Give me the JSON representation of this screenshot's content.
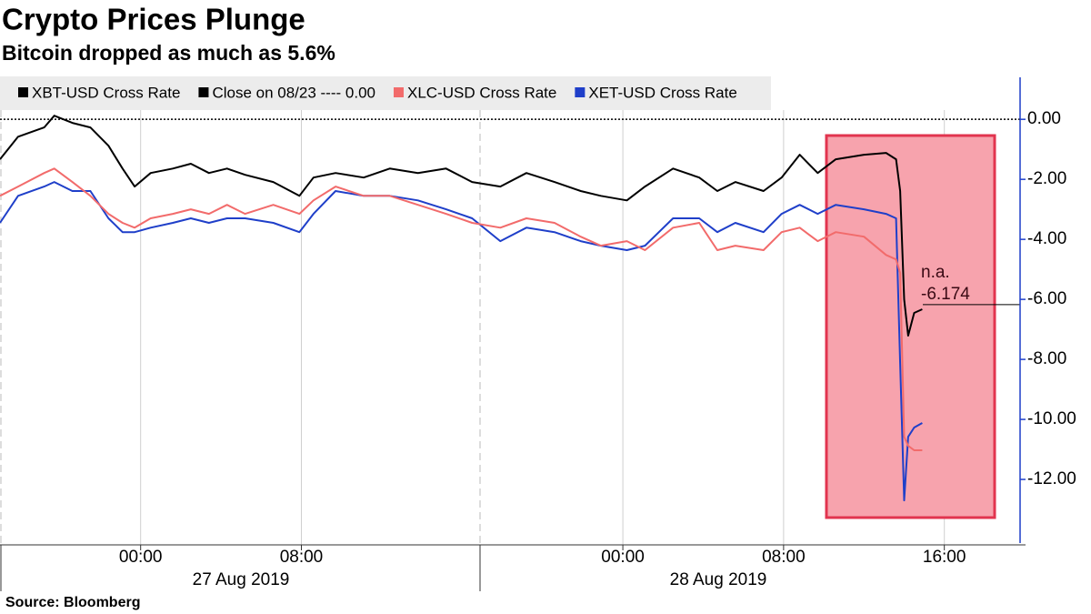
{
  "chart_data": {
    "type": "line",
    "title": "Crypto Prices Plunge",
    "subtitle": "Bitcoin dropped as much as 5.6%",
    "source": "Source: Bloomberg",
    "x": [
      -7.0,
      -6.1,
      -4.8,
      -4.3,
      -3.4,
      -2.5,
      -1.6,
      -0.9,
      -0.3,
      0.5,
      1.6,
      2.5,
      3.4,
      4.3,
      5.2,
      6.6,
      7.9,
      8.6,
      9.7,
      11.1,
      12.4,
      13.8,
      15.2,
      16.5,
      17.9,
      19.2,
      20.6,
      21.9,
      22.9,
      24.2,
      25.1,
      26.5,
      27.8,
      28.7,
      29.6,
      31.0,
      31.9,
      32.8,
      33.7,
      34.6,
      36.0,
      37.1,
      37.6,
      37.8,
      38.0,
      38.2,
      38.5,
      38.9
    ],
    "xlim": [
      -7,
      43.68
    ],
    "xticks": [
      {
        "value": 0,
        "label": "00:00"
      },
      {
        "value": 8,
        "label": "08:00"
      },
      {
        "value": 24,
        "label": "00:00"
      },
      {
        "value": 32,
        "label": "08:00"
      },
      {
        "value": 40,
        "label": "16:00"
      }
    ],
    "date_labels": [
      "27 Aug 2019",
      "28 Aug 2019"
    ],
    "ylim": [
      -14.06,
      1.4
    ],
    "yticks": [
      {
        "value": 0,
        "label": "0.00"
      },
      {
        "value": -2,
        "label": "-2.00"
      },
      {
        "value": -4,
        "label": "-4.00"
      },
      {
        "value": -6,
        "label": "-6.00"
      },
      {
        "value": -8,
        "label": "-8.00"
      },
      {
        "value": -10,
        "label": "-10.00"
      },
      {
        "value": -12,
        "label": "-12.00"
      }
    ],
    "reference": {
      "name": "Close on 08/23 ---- 0.00",
      "value": 0,
      "color": "#000000"
    },
    "series": [
      {
        "name": "XBT-USD Cross Rate",
        "color": "#000000",
        "values": [
          -1.33,
          -0.58,
          -0.27,
          0.12,
          -0.12,
          -0.27,
          -0.88,
          -1.64,
          -2.24,
          -1.79,
          -1.64,
          -1.48,
          -1.79,
          -1.64,
          -1.85,
          -2.09,
          -2.55,
          -1.94,
          -1.79,
          -1.94,
          -1.64,
          -1.79,
          -1.64,
          -2.09,
          -2.24,
          -1.79,
          -2.09,
          -2.39,
          -2.55,
          -2.7,
          -2.24,
          -1.64,
          -1.94,
          -2.39,
          -2.09,
          -2.39,
          -1.94,
          -1.18,
          -1.79,
          -1.33,
          -1.18,
          -1.12,
          -1.33,
          -2.39,
          -6.0,
          -7.21,
          -6.45,
          -6.33
        ]
      },
      {
        "name": "XLC-USD Cross Rate",
        "color": "#f26b6b",
        "values": [
          -2.55,
          -2.24,
          -1.79,
          -1.64,
          -2.09,
          -2.55,
          -3.15,
          -3.45,
          -3.61,
          -3.3,
          -3.15,
          -3.0,
          -3.15,
          -2.85,
          -3.15,
          -2.85,
          -3.15,
          -2.7,
          -2.24,
          -2.55,
          -2.55,
          -2.85,
          -3.15,
          -3.45,
          -3.61,
          -3.3,
          -3.45,
          -3.91,
          -4.21,
          -4.06,
          -4.36,
          -3.61,
          -3.45,
          -4.36,
          -4.21,
          -4.36,
          -3.76,
          -3.61,
          -4.06,
          -3.76,
          -3.91,
          -4.52,
          -4.67,
          -5.12,
          -10.58,
          -10.88,
          -11.03,
          -11.03
        ]
      },
      {
        "name": "XET-USD Cross Rate",
        "color": "#1f3fc9",
        "values": [
          -3.45,
          -2.55,
          -2.24,
          -2.09,
          -2.39,
          -2.39,
          -3.3,
          -3.76,
          -3.76,
          -3.61,
          -3.45,
          -3.3,
          -3.45,
          -3.3,
          -3.3,
          -3.45,
          -3.76,
          -3.15,
          -2.39,
          -2.55,
          -2.55,
          -2.7,
          -3.0,
          -3.3,
          -4.06,
          -3.61,
          -3.76,
          -4.06,
          -4.21,
          -4.36,
          -4.21,
          -3.3,
          -3.3,
          -3.76,
          -3.45,
          -3.76,
          -3.15,
          -2.85,
          -3.15,
          -2.85,
          -3.0,
          -3.15,
          -3.3,
          -8.15,
          -12.7,
          -10.58,
          -10.27,
          -10.12
        ]
      }
    ],
    "annotation": {
      "label": "n.a.",
      "last_value": -6.174
    },
    "grid": true
  }
}
